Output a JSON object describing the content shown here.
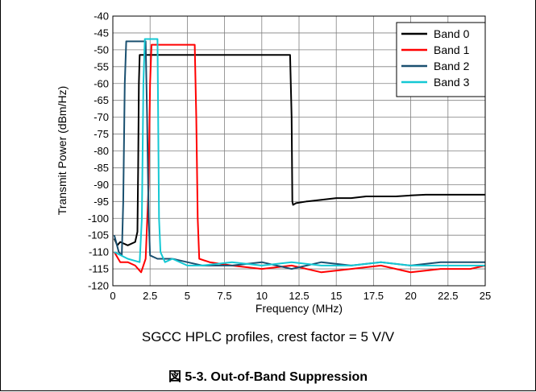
{
  "chart_data": {
    "type": "line",
    "title": "",
    "xlabel": "Frequency (MHz)",
    "ylabel": "Transmit Power (dBm/Hz)",
    "xlim": [
      0,
      25
    ],
    "ylim": [
      -120,
      -40
    ],
    "xticks": [
      0,
      2.5,
      5,
      7.5,
      10,
      12.5,
      15,
      17.5,
      20,
      22.5,
      25
    ],
    "xtick_labels": [
      "0",
      "2.5",
      "5",
      "7.5",
      "10",
      "12.5",
      "15",
      "17.5",
      "20",
      "22.5",
      "25"
    ],
    "yticks": [
      -40,
      -45,
      -50,
      -55,
      -60,
      -65,
      -70,
      -75,
      -80,
      -85,
      -90,
      -95,
      -100,
      -105,
      -110,
      -115,
      -120
    ],
    "ytick_labels": [
      "-40",
      "-45",
      "-50",
      "-55",
      "-60",
      "-65",
      "-70",
      "-75",
      "-80",
      "-85",
      "-90",
      "-95",
      "-100",
      "-105",
      "-110",
      "-115",
      "-120"
    ],
    "grid": true,
    "legend_position": "top-right",
    "series": [
      {
        "name": "Band 0",
        "color": "#000000",
        "x": [
          0.1,
          0.3,
          0.5,
          1.0,
          1.5,
          1.65,
          1.7,
          1.75,
          1.8,
          2.0,
          3.0,
          4.0,
          5.0,
          6.0,
          7.0,
          8.0,
          9.0,
          10.0,
          11.0,
          11.9,
          12.0,
          12.05,
          12.1,
          12.3,
          13.0,
          14.0,
          15.0,
          16.0,
          17.0,
          18.0,
          19.0,
          20.0,
          21.0,
          22.0,
          23.0,
          24.0,
          25.0
        ],
        "y": [
          -106,
          -108,
          -107,
          -108,
          -107,
          -104,
          -85,
          -60,
          -51.5,
          -51.5,
          -51.5,
          -51.5,
          -51.5,
          -51.5,
          -51.5,
          -51.5,
          -51.5,
          -51.5,
          -51.5,
          -51.5,
          -70,
          -95,
          -96,
          -95.5,
          -95,
          -94.5,
          -94,
          -94,
          -93.5,
          -93.5,
          -93.5,
          -93.2,
          -93,
          -93,
          -93,
          -93,
          -93
        ]
      },
      {
        "name": "Band 1",
        "color": "#ff0000",
        "x": [
          0.1,
          0.5,
          1.0,
          1.5,
          1.9,
          2.2,
          2.4,
          2.5,
          2.6,
          3.0,
          3.5,
          4.0,
          4.5,
          5.0,
          5.5,
          5.6,
          5.7,
          5.8,
          6.5,
          8.0,
          10.0,
          12.0,
          14.0,
          16.0,
          18.0,
          20.0,
          22.0,
          24.0,
          25.0
        ],
        "y": [
          -110,
          -113,
          -113,
          -114,
          -116,
          -112,
          -90,
          -60,
          -48.5,
          -48.5,
          -48.5,
          -48.5,
          -48.5,
          -48.5,
          -48.5,
          -70,
          -100,
          -112,
          -113,
          -114,
          -115,
          -114,
          -116,
          -115,
          -114,
          -116,
          -115,
          -115,
          -114
        ]
      },
      {
        "name": "Band 2",
        "color": "#1a5070",
        "x": [
          0.1,
          0.4,
          0.6,
          0.7,
          0.8,
          0.9,
          1.2,
          1.5,
          1.8,
          2.1,
          2.2,
          2.3,
          2.4,
          2.5,
          3.0,
          4.0,
          5.0,
          6.0,
          8.0,
          10.0,
          12.0,
          14.0,
          16.0,
          18.0,
          20.0,
          22.0,
          24.0,
          25.0
        ],
        "y": [
          -105,
          -110,
          -111,
          -95,
          -60,
          -47.5,
          -47.5,
          -47.5,
          -47.5,
          -47.5,
          -47.5,
          -70,
          -100,
          -111,
          -112,
          -112,
          -113,
          -114,
          -114,
          -113,
          -115,
          -113,
          -114,
          -113,
          -114,
          -113,
          -113,
          -113
        ]
      },
      {
        "name": "Band 3",
        "color": "#14c8d4",
        "x": [
          0.1,
          1.0,
          1.8,
          1.95,
          2.05,
          2.15,
          2.5,
          2.8,
          3.0,
          3.05,
          3.1,
          3.2,
          3.5,
          4.0,
          5.0,
          6.0,
          8.0,
          10.0,
          12.0,
          14.0,
          16.0,
          18.0,
          20.0,
          22.0,
          24.0,
          25.0
        ],
        "y": [
          -110,
          -112,
          -113,
          -100,
          -60,
          -46.8,
          -46.8,
          -46.8,
          -46.8,
          -75,
          -100,
          -110,
          -113,
          -112,
          -114,
          -114,
          -113,
          -114,
          -113,
          -114,
          -114,
          -113,
          -114,
          -114,
          -114,
          -114
        ]
      }
    ]
  },
  "subtitle": "SGCC HPLC profiles, crest factor = 5 V/V",
  "caption": "図 5-3. Out-of-Band Suppression"
}
